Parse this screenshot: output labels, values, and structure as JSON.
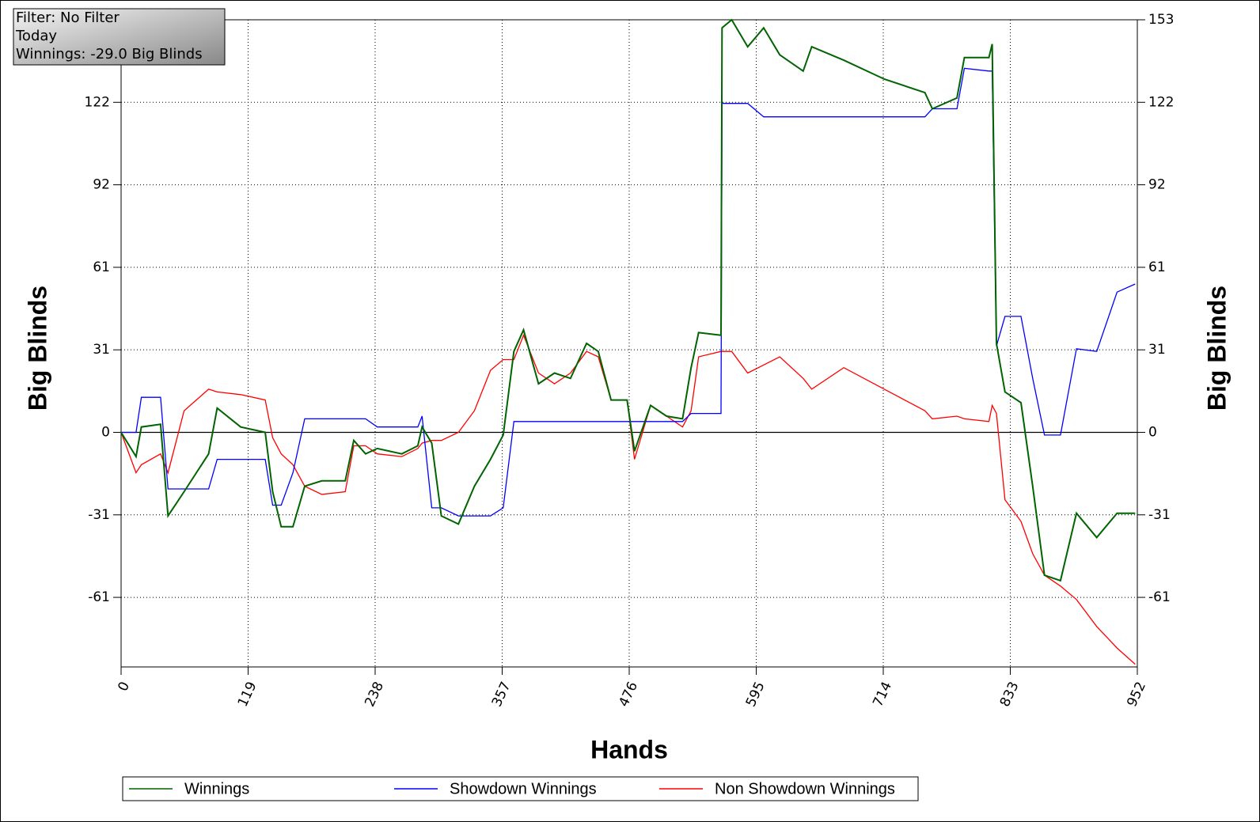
{
  "chart_data": {
    "type": "line",
    "info_box": [
      "Filter: No Filter",
      "Today",
      "Winnings: -29.0 Big Blinds"
    ],
    "x_label": "Hands",
    "y_label": "Big Blinds",
    "x": [
      0,
      14,
      19,
      37,
      44,
      59,
      82,
      90,
      112,
      135,
      142,
      150,
      161,
      172,
      188,
      210,
      218,
      229,
      240,
      263,
      278,
      282,
      291,
      300,
      316,
      331,
      346,
      358,
      368,
      377,
      391,
      406,
      421,
      436,
      447,
      459,
      474,
      481,
      496,
      511,
      526,
      534,
      541,
      562,
      563,
      572,
      587,
      602,
      617,
      639,
      647,
      677,
      715,
      753,
      760,
      783,
      790,
      813,
      816,
      820,
      828,
      843,
      854,
      865,
      880,
      895,
      914,
      933,
      950
    ],
    "series": [
      {
        "name": "Winnings",
        "color": "#006400",
        "values": [
          0,
          -9,
          2,
          3,
          -31,
          -22,
          -8,
          9,
          2,
          0,
          -22,
          -35,
          -35,
          -20,
          -18,
          -18,
          -3,
          -8,
          -6,
          -8,
          -5,
          2,
          -4,
          -31,
          -34,
          -20,
          -10,
          -1,
          30,
          38,
          18,
          22,
          20,
          33,
          30,
          12,
          12,
          -7,
          10,
          6,
          5,
          24,
          37,
          36,
          150,
          153,
          143,
          150,
          140,
          134,
          143,
          138,
          131,
          126,
          120,
          124,
          139,
          139,
          144,
          33,
          15,
          11,
          -20,
          -53,
          -55,
          -30,
          -39,
          -30,
          -30
        ]
      },
      {
        "name": "Showdown Winnings",
        "color": "#0000ff",
        "values": [
          0,
          0,
          13,
          13,
          -21,
          -21,
          -21,
          -10,
          -10,
          -10,
          -27,
          -27,
          -15,
          5,
          5,
          5,
          5,
          5,
          2,
          2,
          2,
          6,
          -28,
          -28,
          -31,
          -31,
          -31,
          -28,
          4,
          4,
          4,
          4,
          4,
          4,
          4,
          4,
          4,
          4,
          4,
          4,
          4,
          7,
          7,
          7,
          122,
          122,
          122,
          117,
          117,
          117,
          117,
          117,
          117,
          117,
          120,
          120,
          135,
          134,
          134,
          32,
          43,
          43,
          20,
          -1,
          -1,
          31,
          30,
          52,
          55
        ]
      },
      {
        "name": "Non Showdown Winnings",
        "color": "#ff0000",
        "values": [
          0,
          -15,
          -12,
          -8,
          -15,
          8,
          16,
          15,
          14,
          12,
          -2,
          -8,
          -12,
          -20,
          -23,
          -22,
          -5,
          -5,
          -8,
          -9,
          -6,
          -4,
          -3,
          -3,
          0,
          8,
          23,
          27,
          27,
          36,
          22,
          18,
          22,
          30,
          28,
          12,
          12,
          -10,
          10,
          6,
          2,
          8,
          28,
          30,
          30,
          30,
          22,
          25,
          28,
          20,
          16,
          24,
          16,
          8,
          5,
          6,
          5,
          4,
          10,
          7,
          -25,
          -33,
          -45,
          -53,
          -57,
          -62,
          -72,
          -80,
          -86
        ]
      }
    ],
    "xlim": [
      0,
      952
    ],
    "xticks": [
      0,
      119,
      238,
      357,
      476,
      595,
      714,
      833,
      952
    ],
    "ylim": [
      -87,
      153
    ],
    "yticks": [
      {
        "value": -61.2,
        "label": "-61"
      },
      {
        "value": -30.6,
        "label": "-31"
      },
      0,
      {
        "value": 30.6,
        "label": "31"
      },
      {
        "value": 61.2,
        "label": "61"
      },
      {
        "value": 91.8,
        "label": "92"
      },
      {
        "value": 122.4,
        "label": "122"
      },
      153
    ],
    "grid": true,
    "zero_line": true,
    "legend": "bottom"
  }
}
